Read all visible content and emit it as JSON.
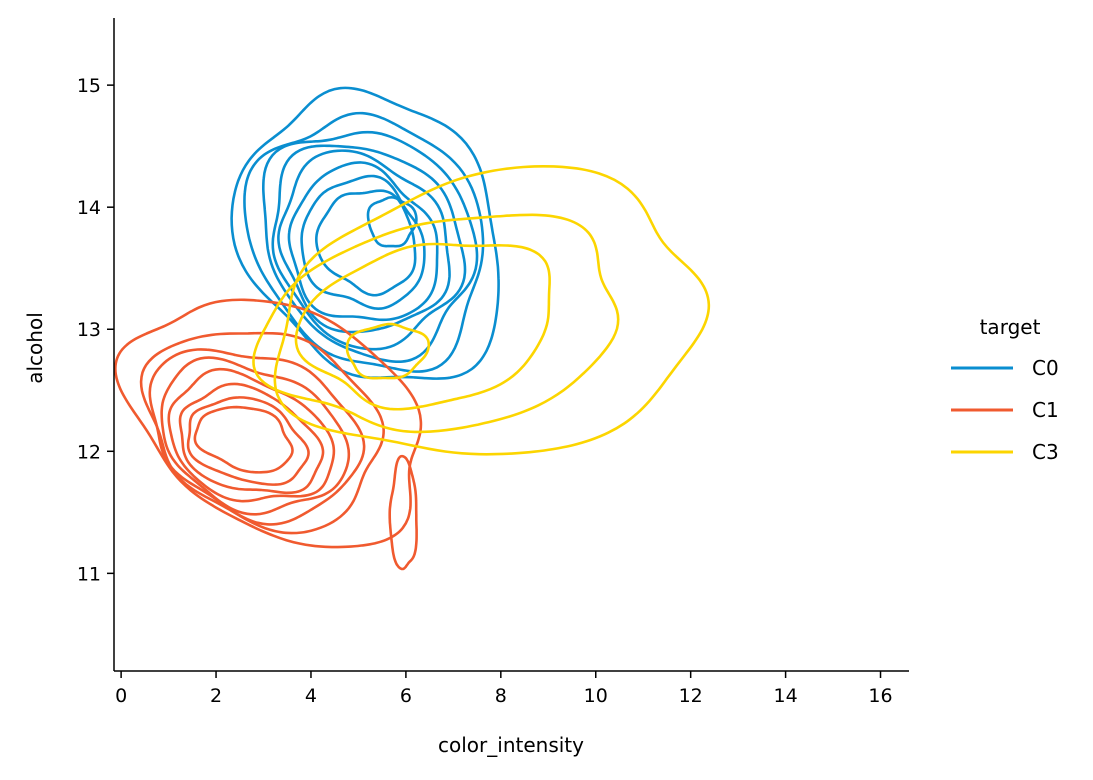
{
  "chart_data": {
    "type": "kde-contour",
    "xlabel": "color_intensity",
    "ylabel": "alcohol",
    "xlim": [
      -0.15,
      16.6
    ],
    "ylim": [
      10.2,
      15.55
    ],
    "xticks": [
      0,
      2,
      4,
      6,
      8,
      10,
      12,
      14,
      16
    ],
    "yticks": [
      11,
      12,
      13,
      14,
      15
    ],
    "grid": false,
    "legend": {
      "title": "target",
      "placement": "right",
      "entries": [
        "C0",
        "C1",
        "C3"
      ]
    },
    "series": [
      {
        "name": "C0",
        "color": "#0a8ed0",
        "levels": [
          {
            "cx": 5.3,
            "cy": 13.75,
            "rx": 2.6,
            "ry": 1.25,
            "rot": 33
          },
          {
            "cx": 5.2,
            "cy": 13.72,
            "rx": 2.35,
            "ry": 1.08,
            "rot": 33
          },
          {
            "cx": 5.2,
            "cy": 13.72,
            "rx": 2.1,
            "ry": 0.97,
            "rot": 33
          },
          {
            "cx": 5.15,
            "cy": 13.7,
            "rx": 1.9,
            "ry": 0.86,
            "rot": 33
          },
          {
            "cx": 5.1,
            "cy": 13.7,
            "rx": 1.7,
            "ry": 0.76,
            "rot": 33
          },
          {
            "cx": 5.1,
            "cy": 13.68,
            "rx": 1.5,
            "ry": 0.66,
            "rot": 33
          },
          {
            "cx": 5.1,
            "cy": 13.7,
            "rx": 1.25,
            "ry": 0.54,
            "rot": 33
          },
          {
            "cx": 5.2,
            "cy": 13.72,
            "rx": 1.0,
            "ry": 0.43,
            "rot": 33
          },
          {
            "cx": 5.7,
            "cy": 13.88,
            "rx": 0.5,
            "ry": 0.2,
            "rot": 10
          }
        ]
      },
      {
        "name": "C1",
        "color": "#f05a2f",
        "levels": [
          {
            "cx": 3.3,
            "cy": 12.25,
            "rx": 2.3,
            "ry": 1.3,
            "rot": 60
          },
          {
            "cx": 3.0,
            "cy": 12.2,
            "rx": 1.95,
            "ry": 1.0,
            "rot": 62
          },
          {
            "cx": 2.8,
            "cy": 12.15,
            "rx": 1.65,
            "ry": 0.9,
            "rot": 65
          },
          {
            "cx": 2.75,
            "cy": 12.12,
            "rx": 1.45,
            "ry": 0.8,
            "rot": 66
          },
          {
            "cx": 2.7,
            "cy": 12.1,
            "rx": 1.25,
            "ry": 0.7,
            "rot": 68
          },
          {
            "cx": 2.7,
            "cy": 12.08,
            "rx": 1.05,
            "ry": 0.6,
            "rot": 70
          },
          {
            "cx": 2.65,
            "cy": 12.08,
            "rx": 0.85,
            "ry": 0.5,
            "rot": 72
          },
          {
            "cx": 2.6,
            "cy": 12.1,
            "rx": 0.65,
            "ry": 0.4,
            "rot": 74
          },
          {
            "cx": 5.95,
            "cy": 11.48,
            "rx": 0.28,
            "ry": 0.46,
            "rot": 0
          }
        ]
      },
      {
        "name": "C3",
        "color": "#fcd500",
        "levels": [
          {
            "cx": 7.8,
            "cy": 13.1,
            "rx": 4.5,
            "ry": 1.15,
            "rot": 10
          },
          {
            "cx": 6.8,
            "cy": 13.05,
            "rx": 3.8,
            "ry": 0.85,
            "rot": 10
          },
          {
            "cx": 6.5,
            "cy": 13.05,
            "rx": 2.7,
            "ry": 0.65,
            "rot": 12
          },
          {
            "cx": 5.6,
            "cy": 12.82,
            "rx": 0.85,
            "ry": 0.22,
            "rot": 5
          }
        ]
      }
    ]
  }
}
